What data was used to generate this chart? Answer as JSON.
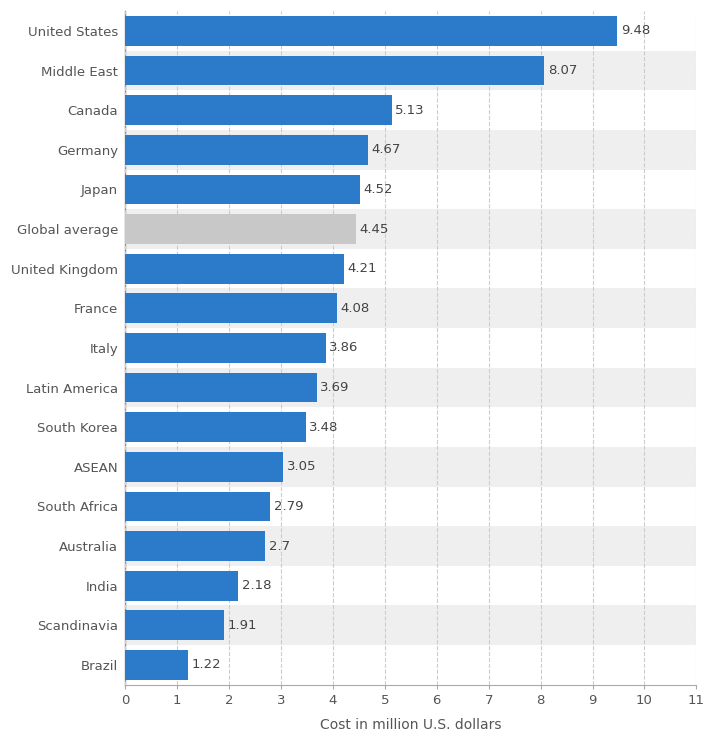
{
  "categories": [
    "United States",
    "Middle East",
    "Canada",
    "Germany",
    "Japan",
    "Global average",
    "United Kingdom",
    "France",
    "Italy",
    "Latin America",
    "South Korea",
    "ASEAN",
    "South Africa",
    "Australia",
    "India",
    "Scandinavia",
    "Brazil"
  ],
  "values": [
    9.48,
    8.07,
    5.13,
    4.67,
    4.52,
    4.45,
    4.21,
    4.08,
    3.86,
    3.69,
    3.48,
    3.05,
    2.79,
    2.7,
    2.18,
    1.91,
    1.22
  ],
  "bar_colors": [
    "#2B7BCA",
    "#2B7BCA",
    "#2B7BCA",
    "#2B7BCA",
    "#2B7BCA",
    "#C8C8C8",
    "#2B7BCA",
    "#2B7BCA",
    "#2B7BCA",
    "#2B7BCA",
    "#2B7BCA",
    "#2B7BCA",
    "#2B7BCA",
    "#2B7BCA",
    "#2B7BCA",
    "#2B7BCA",
    "#2B7BCA"
  ],
  "row_bg_colors": [
    "#ffffff",
    "#efefef"
  ],
  "xlabel": "Cost in million U.S. dollars",
  "xlim": [
    0,
    11
  ],
  "xticks": [
    0,
    1,
    2,
    3,
    4,
    5,
    6,
    7,
    8,
    9,
    10,
    11
  ],
  "background_color": "#ffffff",
  "bar_height": 0.75,
  "label_fontsize": 9.5,
  "xlabel_fontsize": 10,
  "tick_fontsize": 9.5,
  "grid_color": "#cccccc",
  "value_label_color": "#444444",
  "ytick_color": "#555555"
}
